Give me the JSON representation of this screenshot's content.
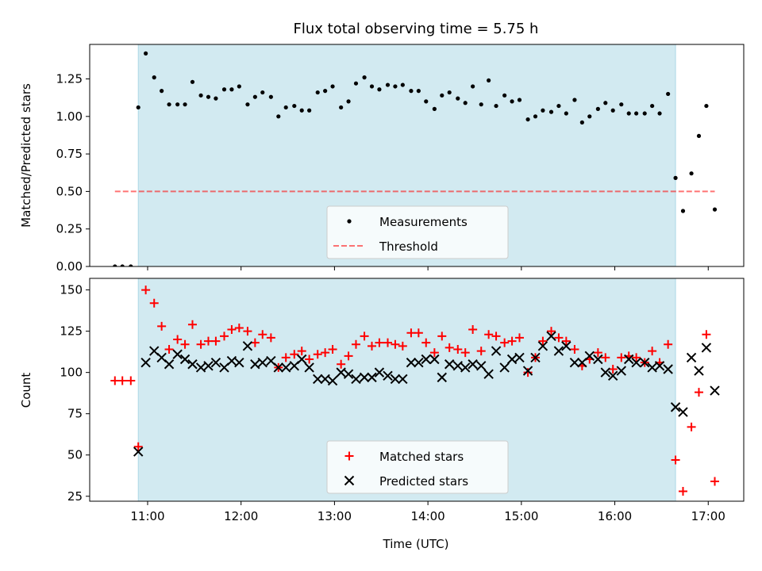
{
  "figure": {
    "title": "Flux total observing time = 5.75 h",
    "xlabel": "Time (UTC)"
  },
  "colors": {
    "shade": "#add8e6",
    "measure": "#000000",
    "threshold": "#ff0000",
    "matched": "#ff0000",
    "predicted": "#000000",
    "axis": "#000000"
  },
  "chart_data": [
    {
      "type": "scatter",
      "panel": "top",
      "title": "Flux total observing time = 5.75 h",
      "ylabel": "Matched/Predicted stars",
      "xlim": [
        10.38,
        17.38
      ],
      "ylim": [
        0,
        1.48
      ],
      "x_ticks": [
        11,
        12,
        13,
        14,
        15,
        16,
        17
      ],
      "y_ticks": [
        0.0,
        0.25,
        0.5,
        0.75,
        1.0,
        1.25
      ],
      "y_tick_labels": [
        "0.00",
        "0.25",
        "0.50",
        "0.75",
        "1.00",
        "1.25"
      ],
      "shaded_interval": [
        10.9,
        16.65
      ],
      "threshold": {
        "name": "Threshold",
        "y": 0.5,
        "x_range": [
          10.65,
          17.07
        ],
        "style": "dashed"
      },
      "legend": {
        "position": "lower center",
        "entries": [
          "Measurements",
          "Threshold"
        ]
      },
      "series": [
        {
          "name": "Measurements",
          "marker": "dot",
          "points": [
            [
              10.65,
              0.0
            ],
            [
              10.73,
              0.0
            ],
            [
              10.82,
              0.0
            ],
            [
              10.9,
              1.06
            ],
            [
              10.98,
              1.42
            ],
            [
              11.07,
              1.26
            ],
            [
              11.15,
              1.17
            ],
            [
              11.23,
              1.08
            ],
            [
              11.32,
              1.08
            ],
            [
              11.4,
              1.08
            ],
            [
              11.48,
              1.23
            ],
            [
              11.57,
              1.14
            ],
            [
              11.65,
              1.13
            ],
            [
              11.73,
              1.12
            ],
            [
              11.82,
              1.18
            ],
            [
              11.9,
              1.18
            ],
            [
              11.98,
              1.2
            ],
            [
              12.07,
              1.08
            ],
            [
              12.15,
              1.13
            ],
            [
              12.23,
              1.16
            ],
            [
              12.32,
              1.13
            ],
            [
              12.4,
              1.0
            ],
            [
              12.48,
              1.06
            ],
            [
              12.57,
              1.07
            ],
            [
              12.65,
              1.04
            ],
            [
              12.73,
              1.04
            ],
            [
              12.82,
              1.16
            ],
            [
              12.9,
              1.17
            ],
            [
              12.98,
              1.2
            ],
            [
              13.07,
              1.06
            ],
            [
              13.15,
              1.1
            ],
            [
              13.23,
              1.22
            ],
            [
              13.32,
              1.26
            ],
            [
              13.4,
              1.2
            ],
            [
              13.48,
              1.18
            ],
            [
              13.57,
              1.21
            ],
            [
              13.65,
              1.2
            ],
            [
              13.73,
              1.21
            ],
            [
              13.82,
              1.17
            ],
            [
              13.9,
              1.17
            ],
            [
              13.98,
              1.1
            ],
            [
              14.07,
              1.05
            ],
            [
              14.15,
              1.14
            ],
            [
              14.23,
              1.16
            ],
            [
              14.32,
              1.12
            ],
            [
              14.4,
              1.09
            ],
            [
              14.48,
              1.2
            ],
            [
              14.57,
              1.08
            ],
            [
              14.65,
              1.24
            ],
            [
              14.73,
              1.07
            ],
            [
              14.82,
              1.14
            ],
            [
              14.9,
              1.1
            ],
            [
              14.98,
              1.11
            ],
            [
              15.07,
              0.98
            ],
            [
              15.15,
              1.0
            ],
            [
              15.23,
              1.04
            ],
            [
              15.32,
              1.03
            ],
            [
              15.4,
              1.07
            ],
            [
              15.48,
              1.02
            ],
            [
              15.57,
              1.11
            ],
            [
              15.65,
              0.96
            ],
            [
              15.73,
              1.0
            ],
            [
              15.82,
              1.05
            ],
            [
              15.9,
              1.09
            ],
            [
              15.98,
              1.04
            ],
            [
              16.07,
              1.08
            ],
            [
              16.15,
              1.02
            ],
            [
              16.23,
              1.02
            ],
            [
              16.32,
              1.02
            ],
            [
              16.4,
              1.07
            ],
            [
              16.48,
              1.02
            ],
            [
              16.57,
              1.15
            ],
            [
              16.65,
              0.59
            ],
            [
              16.73,
              0.37
            ],
            [
              16.82,
              0.62
            ],
            [
              16.9,
              0.87
            ],
            [
              16.98,
              1.07
            ],
            [
              17.07,
              0.38
            ]
          ]
        }
      ]
    },
    {
      "type": "scatter",
      "panel": "bottom",
      "xlabel": "Time (UTC)",
      "ylabel": "Count",
      "xlim": [
        10.38,
        17.38
      ],
      "ylim": [
        22,
        157
      ],
      "x_ticks": [
        11,
        12,
        13,
        14,
        15,
        16,
        17
      ],
      "x_tick_labels": [
        "11:00",
        "12:00",
        "13:00",
        "14:00",
        "15:00",
        "16:00",
        "17:00"
      ],
      "y_ticks": [
        25,
        50,
        75,
        100,
        125,
        150
      ],
      "y_tick_labels": [
        "25",
        "50",
        "75",
        "100",
        "125",
        "150"
      ],
      "shaded_interval": [
        10.9,
        16.65
      ],
      "legend": {
        "position": "lower center",
        "entries": [
          "Matched stars",
          "Predicted stars"
        ]
      },
      "series": [
        {
          "name": "Matched stars",
          "marker": "plus",
          "points": [
            [
              10.65,
              95
            ],
            [
              10.73,
              95
            ],
            [
              10.82,
              95
            ],
            [
              10.9,
              55
            ],
            [
              10.98,
              150
            ],
            [
              11.07,
              142
            ],
            [
              11.15,
              128
            ],
            [
              11.23,
              114
            ],
            [
              11.32,
              120
            ],
            [
              11.4,
              117
            ],
            [
              11.48,
              129
            ],
            [
              11.57,
              117
            ],
            [
              11.65,
              119
            ],
            [
              11.73,
              119
            ],
            [
              11.82,
              122
            ],
            [
              11.9,
              126
            ],
            [
              11.98,
              127
            ],
            [
              12.07,
              125
            ],
            [
              12.15,
              118
            ],
            [
              12.23,
              123
            ],
            [
              12.32,
              121
            ],
            [
              12.4,
              103
            ],
            [
              12.48,
              109
            ],
            [
              12.57,
              111
            ],
            [
              12.65,
              113
            ],
            [
              12.73,
              108
            ],
            [
              12.82,
              111
            ],
            [
              12.9,
              112
            ],
            [
              12.98,
              114
            ],
            [
              13.07,
              105
            ],
            [
              13.15,
              110
            ],
            [
              13.23,
              117
            ],
            [
              13.32,
              122
            ],
            [
              13.4,
              116
            ],
            [
              13.48,
              118
            ],
            [
              13.57,
              118
            ],
            [
              13.65,
              117
            ],
            [
              13.73,
              116
            ],
            [
              13.82,
              124
            ],
            [
              13.9,
              124
            ],
            [
              13.98,
              118
            ],
            [
              14.07,
              112
            ],
            [
              14.15,
              122
            ],
            [
              14.23,
              115
            ],
            [
              14.32,
              114
            ],
            [
              14.4,
              112
            ],
            [
              14.48,
              126
            ],
            [
              14.57,
              113
            ],
            [
              14.65,
              123
            ],
            [
              14.73,
              122
            ],
            [
              14.82,
              118
            ],
            [
              14.9,
              119
            ],
            [
              14.98,
              121
            ],
            [
              15.07,
              100
            ],
            [
              15.15,
              109
            ],
            [
              15.23,
              119
            ],
            [
              15.32,
              125
            ],
            [
              15.4,
              121
            ],
            [
              15.48,
              119
            ],
            [
              15.57,
              114
            ],
            [
              15.65,
              104
            ],
            [
              15.73,
              108
            ],
            [
              15.82,
              112
            ],
            [
              15.9,
              109
            ],
            [
              15.98,
              102
            ],
            [
              16.07,
              109
            ],
            [
              16.15,
              110
            ],
            [
              16.23,
              109
            ],
            [
              16.32,
              106
            ],
            [
              16.4,
              113
            ],
            [
              16.48,
              106
            ],
            [
              16.57,
              117
            ],
            [
              16.65,
              47
            ],
            [
              16.73,
              28
            ],
            [
              16.82,
              67
            ],
            [
              16.9,
              88
            ],
            [
              16.98,
              123
            ],
            [
              17.07,
              34
            ]
          ]
        },
        {
          "name": "Predicted stars",
          "marker": "x",
          "points": [
            [
              10.9,
              52
            ],
            [
              10.98,
              106
            ],
            [
              11.07,
              113
            ],
            [
              11.15,
              109
            ],
            [
              11.23,
              105
            ],
            [
              11.32,
              111
            ],
            [
              11.4,
              108
            ],
            [
              11.48,
              105
            ],
            [
              11.57,
              103
            ],
            [
              11.65,
              104
            ],
            [
              11.73,
              106
            ],
            [
              11.82,
              103
            ],
            [
              11.9,
              107
            ],
            [
              11.98,
              106
            ],
            [
              12.07,
              116
            ],
            [
              12.15,
              105
            ],
            [
              12.23,
              106
            ],
            [
              12.32,
              107
            ],
            [
              12.4,
              103
            ],
            [
              12.48,
              103
            ],
            [
              12.57,
              104
            ],
            [
              12.65,
              108
            ],
            [
              12.73,
              103
            ],
            [
              12.82,
              96
            ],
            [
              12.9,
              96
            ],
            [
              12.98,
              95
            ],
            [
              13.07,
              100
            ],
            [
              13.15,
              99
            ],
            [
              13.23,
              96
            ],
            [
              13.32,
              97
            ],
            [
              13.4,
              97
            ],
            [
              13.48,
              100
            ],
            [
              13.57,
              98
            ],
            [
              13.65,
              96
            ],
            [
              13.73,
              96
            ],
            [
              13.82,
              106
            ],
            [
              13.9,
              106
            ],
            [
              13.98,
              108
            ],
            [
              14.07,
              108
            ],
            [
              14.15,
              97
            ],
            [
              14.23,
              105
            ],
            [
              14.32,
              104
            ],
            [
              14.4,
              103
            ],
            [
              14.48,
              105
            ],
            [
              14.57,
              104
            ],
            [
              14.65,
              99
            ],
            [
              14.73,
              113
            ],
            [
              14.82,
              103
            ],
            [
              14.9,
              108
            ],
            [
              14.98,
              109
            ],
            [
              15.07,
              101
            ],
            [
              15.15,
              109
            ],
            [
              15.23,
              116
            ],
            [
              15.32,
              122
            ],
            [
              15.4,
              113
            ],
            [
              15.48,
              116
            ],
            [
              15.57,
              106
            ],
            [
              15.65,
              106
            ],
            [
              15.73,
              110
            ],
            [
              15.82,
              108
            ],
            [
              15.9,
              100
            ],
            [
              15.98,
              98
            ],
            [
              16.07,
              101
            ],
            [
              16.15,
              108
            ],
            [
              16.23,
              106
            ],
            [
              16.32,
              106
            ],
            [
              16.4,
              103
            ],
            [
              16.48,
              104
            ],
            [
              16.57,
              102
            ],
            [
              16.65,
              79
            ],
            [
              16.73,
              76
            ],
            [
              16.82,
              109
            ],
            [
              16.9,
              101
            ],
            [
              16.98,
              115
            ],
            [
              17.07,
              89
            ]
          ]
        }
      ]
    }
  ]
}
